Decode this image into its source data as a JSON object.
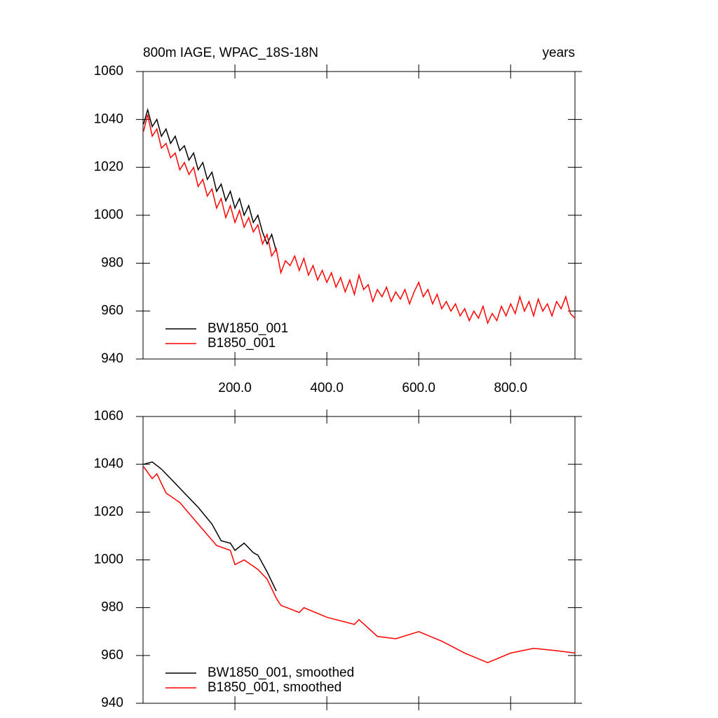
{
  "chart_data": [
    {
      "type": "line",
      "title": "800m IAGE, WPAC_18S-18N",
      "subtitle": "years",
      "xlim": [
        0,
        940
      ],
      "ylim": [
        940,
        1060
      ],
      "xticks": [
        {
          "value": 200,
          "label": "200.0"
        },
        {
          "value": 400,
          "label": "400.0"
        },
        {
          "value": 600,
          "label": "600.0"
        },
        {
          "value": 800,
          "label": "800.0"
        }
      ],
      "yticks": [
        940,
        960,
        980,
        1000,
        1020,
        1040,
        1060
      ],
      "series": [
        {
          "name": "BW1850_001",
          "color": "#000000",
          "x": [
            1,
            10,
            20,
            30,
            40,
            50,
            60,
            70,
            80,
            90,
            100,
            110,
            120,
            130,
            140,
            150,
            160,
            170,
            180,
            190,
            200,
            210,
            220,
            230,
            240,
            250,
            260,
            270,
            280,
            290
          ],
          "values": [
            1038,
            1044,
            1037,
            1040,
            1033,
            1036,
            1030,
            1033,
            1027,
            1029,
            1023,
            1026,
            1019,
            1022,
            1015,
            1018,
            1010,
            1013,
            1006,
            1010,
            1003,
            1007,
            1000,
            1004,
            997,
            1000,
            993,
            988,
            992,
            985
          ]
        },
        {
          "name": "B1850_001",
          "color": "#ff0000",
          "x": [
            1,
            10,
            20,
            30,
            40,
            50,
            60,
            70,
            80,
            90,
            100,
            110,
            120,
            130,
            140,
            150,
            160,
            170,
            180,
            190,
            200,
            210,
            220,
            230,
            240,
            250,
            260,
            270,
            280,
            290,
            300,
            310,
            320,
            330,
            340,
            350,
            360,
            370,
            380,
            390,
            400,
            410,
            420,
            430,
            440,
            450,
            460,
            470,
            480,
            490,
            500,
            510,
            520,
            530,
            540,
            550,
            560,
            570,
            580,
            590,
            600,
            610,
            620,
            630,
            640,
            650,
            660,
            670,
            680,
            690,
            700,
            710,
            720,
            730,
            740,
            750,
            760,
            770,
            780,
            790,
            800,
            810,
            820,
            830,
            840,
            850,
            860,
            870,
            880,
            890,
            900,
            910,
            920,
            930,
            940
          ],
          "values": [
            1035,
            1042,
            1033,
            1036,
            1028,
            1030,
            1024,
            1026,
            1019,
            1022,
            1017,
            1020,
            1012,
            1015,
            1008,
            1011,
            1003,
            1007,
            999,
            1004,
            997,
            1002,
            995,
            999,
            993,
            996,
            988,
            992,
            983,
            986,
            976,
            981,
            979,
            983,
            977,
            982,
            975,
            979,
            973,
            977,
            972,
            976,
            970,
            974,
            968,
            973,
            967,
            975,
            969,
            971,
            964,
            969,
            966,
            970,
            964,
            968,
            965,
            969,
            963,
            968,
            972,
            966,
            969,
            963,
            967,
            961,
            964,
            960,
            963,
            958,
            961,
            956,
            960,
            957,
            962,
            955,
            959,
            956,
            962,
            958,
            963,
            959,
            966,
            960,
            964,
            958,
            965,
            960,
            963,
            958,
            964,
            961,
            966,
            959,
            957
          ]
        }
      ]
    },
    {
      "type": "line",
      "xlim": [
        0,
        940
      ],
      "ylim": [
        940,
        1060
      ],
      "xticks": [
        200,
        400,
        600,
        800
      ],
      "yticks": [
        940,
        960,
        980,
        1000,
        1020,
        1040,
        1060
      ],
      "series": [
        {
          "name": "BW1850_001, smoothed",
          "color": "#000000",
          "x": [
            1,
            20,
            40,
            70,
            90,
            120,
            150,
            170,
            190,
            200,
            220,
            240,
            250,
            270,
            290
          ],
          "values": [
            1040,
            1041,
            1038,
            1032,
            1028,
            1022,
            1015,
            1008,
            1007,
            1004,
            1007,
            1003,
            1002,
            995,
            987
          ]
        },
        {
          "name": "B1850_001, smoothed",
          "color": "#ff0000",
          "x": [
            1,
            20,
            30,
            50,
            80,
            120,
            160,
            190,
            200,
            220,
            250,
            270,
            290,
            300,
            340,
            350,
            400,
            460,
            470,
            510,
            550,
            600,
            650,
            680,
            700,
            750,
            800,
            850,
            900,
            940
          ],
          "values": [
            1039,
            1034,
            1036,
            1028,
            1024,
            1015,
            1006,
            1004,
            998,
            1000,
            996,
            992,
            984,
            981,
            978,
            980,
            976,
            973,
            975,
            968,
            967,
            970,
            966,
            963,
            961,
            957,
            961,
            963,
            962,
            961
          ]
        }
      ]
    }
  ]
}
